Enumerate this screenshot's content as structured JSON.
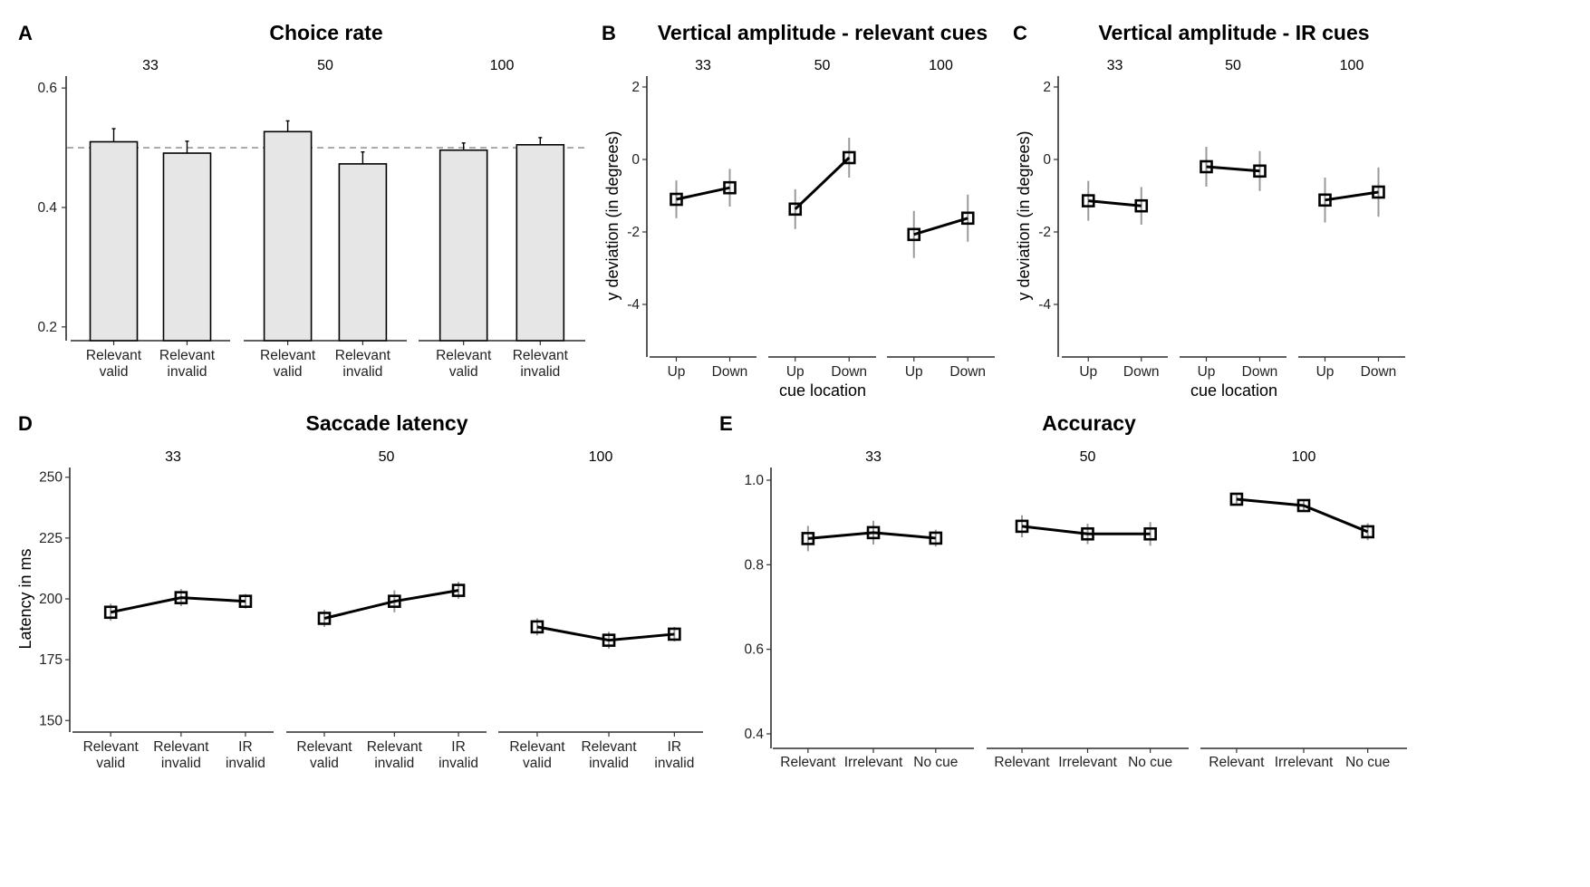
{
  "chart_data": [
    {
      "id": "A",
      "panel_letter": "A",
      "type": "bar",
      "title": "Choice rate",
      "xlabel": "",
      "ylabel": "",
      "ylim": [
        0.18,
        0.62
      ],
      "yticks": [
        0.2,
        0.4,
        0.6
      ],
      "ytick_labels": [
        "0.2",
        "0.4",
        "0.6"
      ],
      "reference_line": 0.5,
      "categories": [
        "Relevant\nvalid",
        "Relevant\ninvalid"
      ],
      "facets": [
        {
          "label": "33",
          "values": [
            0.51,
            0.491
          ],
          "errors": [
            0.022,
            0.02
          ]
        },
        {
          "label": "50",
          "values": [
            0.527,
            0.473
          ],
          "errors": [
            0.018,
            0.02
          ]
        },
        {
          "label": "100",
          "values": [
            0.496,
            0.505
          ],
          "errors": [
            0.012,
            0.012
          ]
        }
      ]
    },
    {
      "id": "B",
      "panel_letter": "B",
      "type": "line",
      "title": "Vertical amplitude - relevant cues",
      "xlabel": "cue location",
      "ylabel": "y deviation (in degrees)",
      "ylim": [
        -5.4,
        2.3
      ],
      "yticks": [
        -4,
        -2,
        0,
        2
      ],
      "ytick_labels": [
        "-4",
        "-2",
        "0",
        "2"
      ],
      "categories": [
        "Up",
        "Down"
      ],
      "facets": [
        {
          "label": "33",
          "values": [
            -1.1,
            -0.78
          ],
          "errors": [
            0.52,
            0.52
          ]
        },
        {
          "label": "50",
          "values": [
            -1.37,
            0.05
          ],
          "errors": [
            0.55,
            0.55
          ]
        },
        {
          "label": "100",
          "values": [
            -2.07,
            -1.62
          ],
          "errors": [
            0.65,
            0.65
          ]
        }
      ]
    },
    {
      "id": "C",
      "panel_letter": "C",
      "type": "line",
      "title": "Vertical amplitude - IR cues",
      "xlabel": "cue location",
      "ylabel": "y deviation (in degrees)",
      "ylim": [
        -5.4,
        2.3
      ],
      "yticks": [
        -4,
        -2,
        0,
        2
      ],
      "ytick_labels": [
        "-4",
        "-2",
        "0",
        "2"
      ],
      "categories": [
        "Up",
        "Down"
      ],
      "facets": [
        {
          "label": "33",
          "values": [
            -1.14,
            -1.28
          ],
          "errors": [
            0.55,
            0.52
          ]
        },
        {
          "label": "50",
          "values": [
            -0.2,
            -0.32
          ],
          "errors": [
            0.55,
            0.55
          ]
        },
        {
          "label": "100",
          "values": [
            -1.12,
            -0.9
          ],
          "errors": [
            0.62,
            0.68
          ]
        }
      ]
    },
    {
      "id": "D",
      "panel_letter": "D",
      "type": "line",
      "title": "Saccade latency",
      "xlabel": "",
      "ylabel": "Latency in ms",
      "ylim": [
        146,
        254
      ],
      "yticks": [
        150,
        175,
        200,
        225,
        250
      ],
      "ytick_labels": [
        "150",
        "175",
        "200",
        "225",
        "250"
      ],
      "categories": [
        "Relevant\nvalid",
        "Relevant\ninvalid",
        "IR\ninvalid"
      ],
      "facets": [
        {
          "label": "33",
          "values": [
            194.5,
            200.5,
            199.0
          ],
          "errors": [
            3.5,
            3.5,
            3.0
          ]
        },
        {
          "label": "50",
          "values": [
            192.0,
            199.0,
            203.5
          ],
          "errors": [
            3.5,
            4.5,
            3.5
          ]
        },
        {
          "label": "100",
          "values": [
            188.5,
            183.0,
            185.5
          ],
          "errors": [
            3.5,
            3.5,
            3.0
          ]
        }
      ]
    },
    {
      "id": "E",
      "panel_letter": "E",
      "type": "line",
      "title": "Accuracy",
      "xlabel": "",
      "ylabel": "",
      "ylim": [
        0.37,
        1.03
      ],
      "yticks": [
        0.4,
        0.6,
        0.8,
        1.0
      ],
      "ytick_labels": [
        "0.4",
        "0.6",
        "0.8",
        "1.0"
      ],
      "categories": [
        "Relevant",
        "Irrelevant",
        "No cue"
      ],
      "facets": [
        {
          "label": "33",
          "values": [
            0.862,
            0.876,
            0.863
          ],
          "errors": [
            0.03,
            0.028,
            0.02
          ]
        },
        {
          "label": "50",
          "values": [
            0.891,
            0.873,
            0.873
          ],
          "errors": [
            0.026,
            0.024,
            0.028
          ]
        },
        {
          "label": "100",
          "values": [
            0.955,
            0.94,
            0.878
          ],
          "errors": [
            0.01,
            0.012,
            0.02
          ]
        }
      ]
    }
  ]
}
